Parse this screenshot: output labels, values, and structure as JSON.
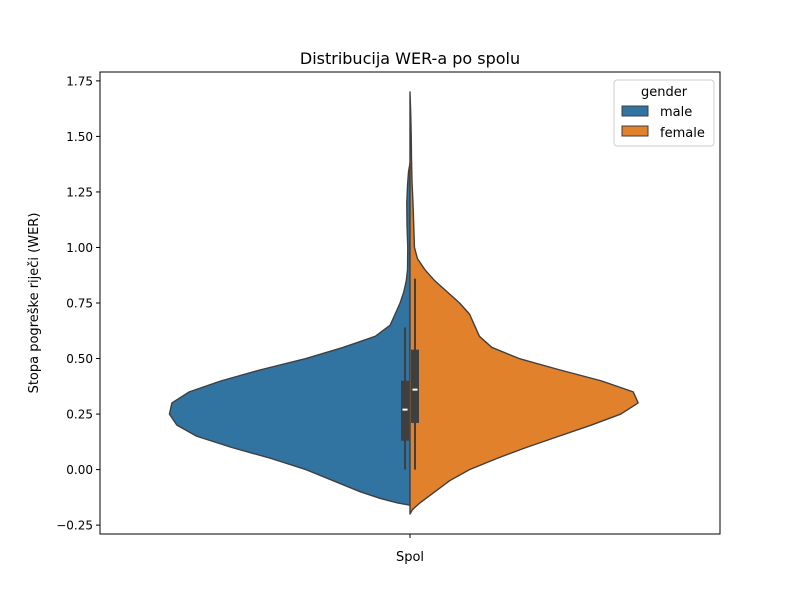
{
  "chart_data": {
    "type": "violin",
    "title": "Distribucija WER-a po spolu",
    "xlabel": "Spol",
    "ylabel": "Stopa pogreške riječi (WER)",
    "categories": [
      "Spol"
    ],
    "ylim": [
      -0.29,
      1.79
    ],
    "yticks": [
      -0.25,
      0.0,
      0.25,
      0.5,
      0.75,
      1.0,
      1.25,
      1.5,
      1.75
    ],
    "ytick_labels": [
      "−0.25",
      "0.00",
      "0.25",
      "0.50",
      "0.75",
      "1.00",
      "1.25",
      "1.50",
      "1.75"
    ],
    "split": true,
    "legend": {
      "title": "gender",
      "position": "top-right",
      "entries": [
        "male",
        "female"
      ]
    },
    "series": [
      {
        "name": "male",
        "color": "#3274a1",
        "side": "left",
        "density": [
          [
            -0.16,
            0.0
          ],
          [
            -0.15,
            0.05
          ],
          [
            -0.13,
            0.12
          ],
          [
            -0.1,
            0.2
          ],
          [
            -0.05,
            0.31
          ],
          [
            0.0,
            0.42
          ],
          [
            0.05,
            0.56
          ],
          [
            0.1,
            0.72
          ],
          [
            0.15,
            0.86
          ],
          [
            0.2,
            0.94
          ],
          [
            0.25,
            0.97
          ],
          [
            0.3,
            0.96
          ],
          [
            0.35,
            0.89
          ],
          [
            0.4,
            0.76
          ],
          [
            0.45,
            0.6
          ],
          [
            0.5,
            0.42
          ],
          [
            0.55,
            0.27
          ],
          [
            0.6,
            0.14
          ],
          [
            0.65,
            0.08
          ],
          [
            0.7,
            0.06
          ],
          [
            0.75,
            0.04
          ],
          [
            0.8,
            0.025
          ],
          [
            0.85,
            0.015
          ],
          [
            0.9,
            0.01
          ],
          [
            1.0,
            0.009
          ],
          [
            1.1,
            0.012
          ],
          [
            1.2,
            0.013
          ],
          [
            1.28,
            0.01
          ],
          [
            1.34,
            0.006
          ],
          [
            1.38,
            0.0
          ]
        ],
        "box": {
          "q1": 0.13,
          "median": 0.27,
          "q3": 0.4,
          "whisker_low": 0.0,
          "whisker_high": 0.64
        }
      },
      {
        "name": "female",
        "color": "#e1812c",
        "side": "right",
        "density": [
          [
            -0.2,
            0.0
          ],
          [
            -0.18,
            0.01
          ],
          [
            -0.15,
            0.04
          ],
          [
            -0.1,
            0.1
          ],
          [
            -0.05,
            0.16
          ],
          [
            0.0,
            0.24
          ],
          [
            0.05,
            0.35
          ],
          [
            0.1,
            0.47
          ],
          [
            0.15,
            0.6
          ],
          [
            0.2,
            0.73
          ],
          [
            0.25,
            0.85
          ],
          [
            0.3,
            0.92
          ],
          [
            0.35,
            0.9
          ],
          [
            0.4,
            0.77
          ],
          [
            0.45,
            0.6
          ],
          [
            0.5,
            0.44
          ],
          [
            0.55,
            0.33
          ],
          [
            0.6,
            0.28
          ],
          [
            0.65,
            0.26
          ],
          [
            0.7,
            0.24
          ],
          [
            0.75,
            0.2
          ],
          [
            0.8,
            0.15
          ],
          [
            0.85,
            0.1
          ],
          [
            0.9,
            0.06
          ],
          [
            0.95,
            0.03
          ],
          [
            1.0,
            0.018
          ],
          [
            1.1,
            0.015
          ],
          [
            1.2,
            0.012
          ],
          [
            1.3,
            0.008
          ],
          [
            1.4,
            0.006
          ],
          [
            1.5,
            0.005
          ],
          [
            1.6,
            0.003
          ],
          [
            1.7,
            0.0
          ]
        ],
        "box": {
          "q1": 0.21,
          "median": 0.36,
          "q3": 0.54,
          "whisker_low": 0.0,
          "whisker_high": 0.86
        }
      }
    ]
  }
}
